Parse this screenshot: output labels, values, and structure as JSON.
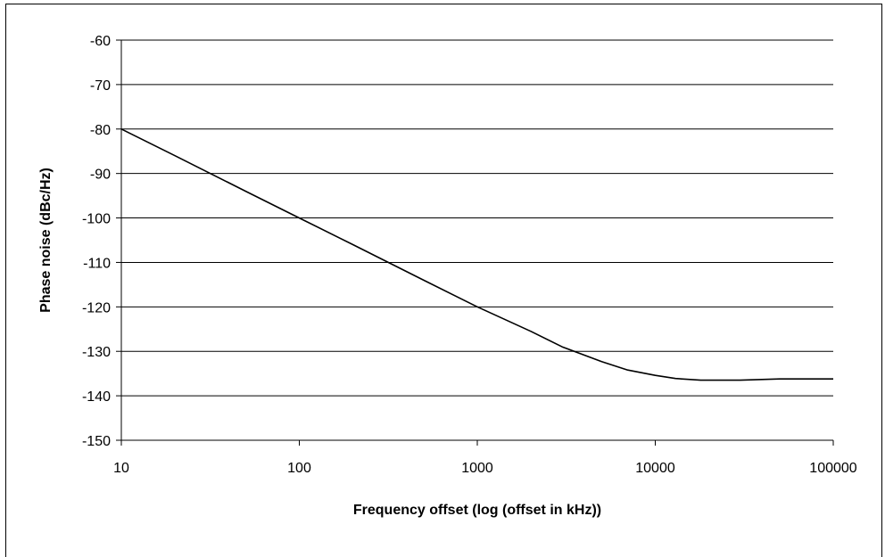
{
  "chart_data": {
    "type": "line",
    "title": "",
    "xlabel": "Frequency offset (log (offset in kHz))",
    "ylabel": "Phase noise (dBc/Hz)",
    "x_scale": "log",
    "xlim": [
      10,
      100000
    ],
    "ylim": [
      -150,
      -60
    ],
    "x_ticks": [
      10,
      100,
      1000,
      10000,
      100000
    ],
    "y_ticks": [
      -60,
      -70,
      -80,
      -90,
      -100,
      -110,
      -120,
      -130,
      -140,
      -150
    ],
    "grid": "horizontal",
    "legend": "none",
    "line_color": "#000000",
    "series": [
      {
        "x": [
          10,
          20,
          50,
          100,
          200,
          500,
          1000,
          2000,
          3000,
          5000,
          7000,
          10000,
          13000,
          18000,
          30000,
          50000,
          100000
        ],
        "y": [
          -80,
          -86,
          -94,
          -100,
          -106,
          -114,
          -120,
          -125.5,
          -129,
          -132.3,
          -134.2,
          -135.4,
          -136.1,
          -136.5,
          -136.5,
          -136.2,
          -136.2
        ]
      }
    ]
  }
}
